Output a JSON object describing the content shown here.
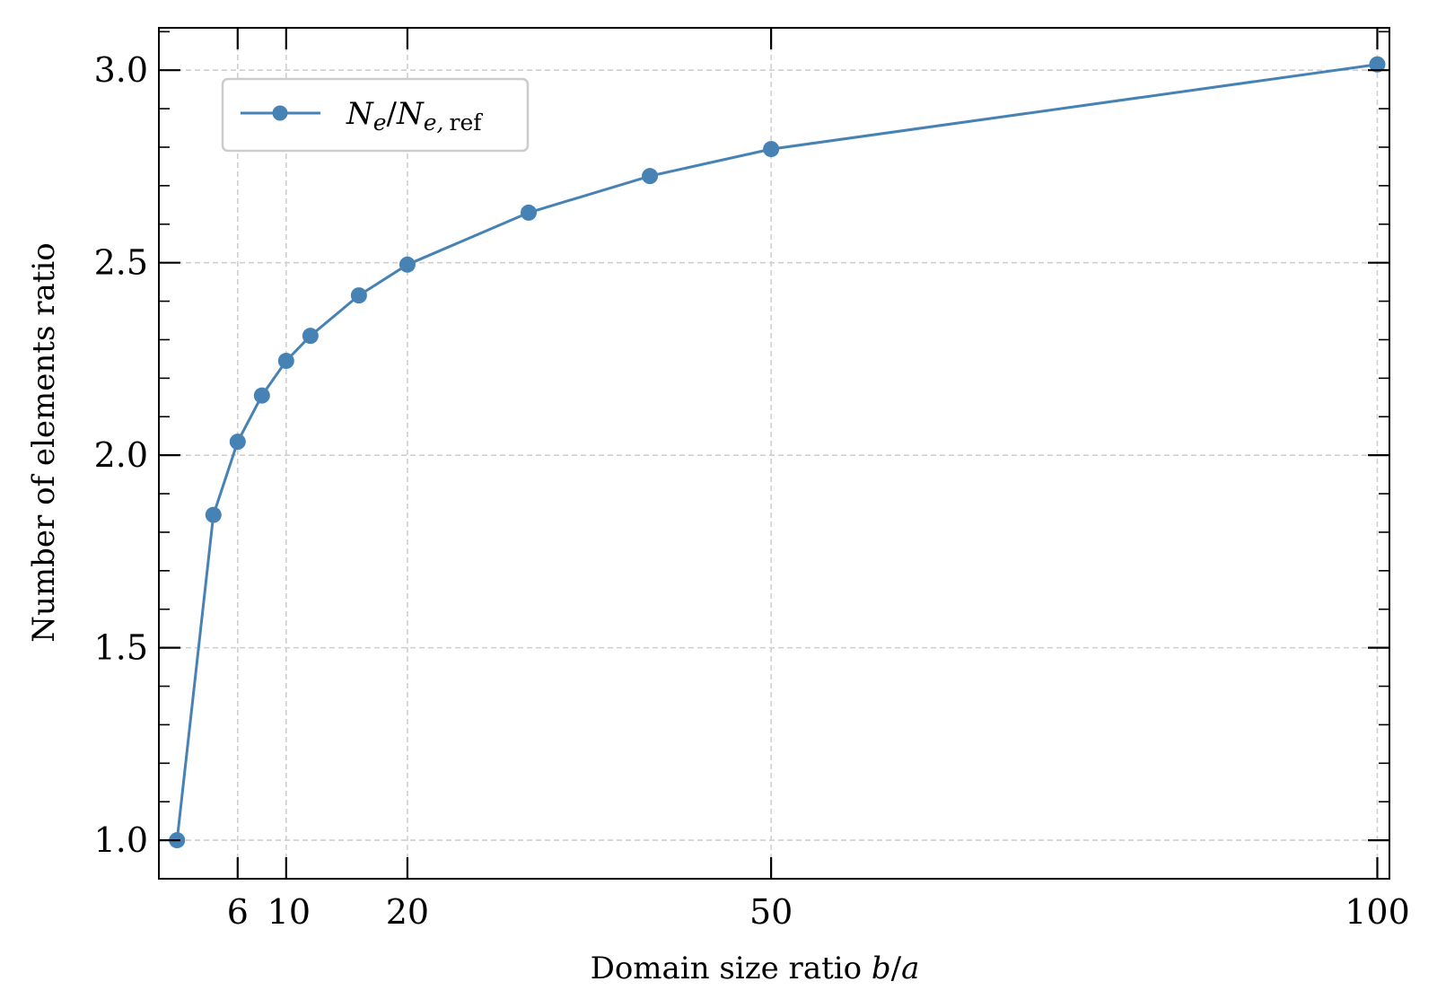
{
  "chart_data": {
    "type": "line",
    "title": "",
    "xlabel": "Domain size ratio b/a",
    "xlabel_parts": {
      "text": "Domain size ratio ",
      "var_b": "b",
      "slash": "/",
      "var_a": "a"
    },
    "ylabel": "Number of elements ratio",
    "xlim": [
      -0.5,
      101
    ],
    "ylim": [
      0.9,
      3.11
    ],
    "xticks": [
      6,
      10,
      20,
      50,
      100
    ],
    "yticks": [
      1.0,
      1.5,
      2.0,
      2.5,
      3.0
    ],
    "xtick_labels": [
      "6",
      "10",
      "20",
      "50",
      "100"
    ],
    "ytick_labels": [
      "1.0",
      "1.5",
      "2.0",
      "2.5",
      "3.0"
    ],
    "grid": true,
    "legend_position": "upper-left",
    "series": [
      {
        "name": "N_e/N_e,ref",
        "color": "#4682b4",
        "marker": "circle",
        "x": [
          1,
          4,
          6,
          8,
          10,
          12,
          16,
          20,
          30,
          40,
          50,
          100
        ],
        "y": [
          1.0,
          1.845,
          2.035,
          2.155,
          2.245,
          2.31,
          2.415,
          2.495,
          2.63,
          2.725,
          2.795,
          3.015
        ]
      }
    ],
    "legend": {
      "main": "N",
      "sub1": "e",
      "slash": "/",
      "main2": "N",
      "sub2": "e,",
      "sub2_ref": "ref"
    }
  }
}
